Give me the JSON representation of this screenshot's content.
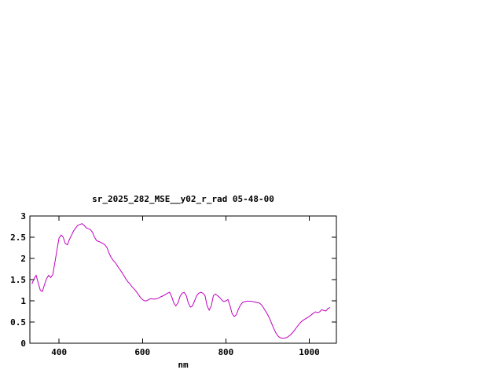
{
  "window": {
    "background": "#ffffff"
  },
  "chart_data": {
    "type": "line",
    "title": "sr_2025_282_MSE__y02_r_rad 05-48-00",
    "xlabel": "nm",
    "ylabel": "",
    "xlim": [
      330,
      1065
    ],
    "ylim": [
      0,
      3
    ],
    "xticks": [
      400,
      600,
      800,
      1000
    ],
    "xtick_labels": [
      "400",
      "600",
      "800",
      "1000"
    ],
    "yticks": [
      0,
      0.5,
      1,
      1.5,
      2,
      2.5,
      3
    ],
    "ytick_labels": [
      "0",
      "0.5",
      "1",
      "1.5",
      "2",
      "2.5",
      "3"
    ],
    "grid": false,
    "legend": "none",
    "line_color": "#bf00bf",
    "axis_color": "#000000",
    "series": [
      {
        "name": "sr_2025_282_MSE__y02_r_rad",
        "x": [
          335,
          340,
          345,
          350,
          355,
          360,
          365,
          370,
          375,
          380,
          385,
          390,
          395,
          400,
          405,
          410,
          415,
          420,
          425,
          430,
          435,
          440,
          445,
          450,
          455,
          460,
          465,
          470,
          475,
          480,
          485,
          490,
          495,
          500,
          505,
          510,
          515,
          520,
          525,
          530,
          535,
          540,
          545,
          550,
          555,
          560,
          565,
          570,
          575,
          580,
          585,
          590,
          595,
          600,
          605,
          610,
          615,
          620,
          625,
          630,
          635,
          640,
          645,
          650,
          655,
          660,
          665,
          670,
          675,
          680,
          685,
          690,
          695,
          700,
          705,
          710,
          715,
          720,
          725,
          730,
          735,
          740,
          745,
          750,
          755,
          760,
          765,
          770,
          775,
          780,
          785,
          790,
          795,
          800,
          805,
          810,
          815,
          820,
          825,
          830,
          835,
          840,
          845,
          850,
          855,
          860,
          865,
          870,
          875,
          880,
          885,
          890,
          895,
          900,
          905,
          910,
          915,
          920,
          925,
          930,
          935,
          940,
          945,
          950,
          955,
          960,
          965,
          970,
          975,
          980,
          985,
          990,
          995,
          1000,
          1005,
          1010,
          1015,
          1020,
          1025,
          1030,
          1035,
          1040,
          1045,
          1050
        ],
        "y": [
          1.4,
          1.52,
          1.6,
          1.42,
          1.25,
          1.22,
          1.38,
          1.52,
          1.6,
          1.55,
          1.62,
          1.9,
          2.2,
          2.48,
          2.55,
          2.5,
          2.35,
          2.32,
          2.45,
          2.55,
          2.65,
          2.72,
          2.78,
          2.8,
          2.82,
          2.78,
          2.72,
          2.7,
          2.68,
          2.62,
          2.5,
          2.42,
          2.4,
          2.38,
          2.35,
          2.32,
          2.25,
          2.12,
          2.02,
          1.95,
          1.9,
          1.82,
          1.75,
          1.68,
          1.6,
          1.52,
          1.45,
          1.4,
          1.33,
          1.28,
          1.22,
          1.15,
          1.08,
          1.03,
          1.0,
          1.0,
          1.03,
          1.05,
          1.04,
          1.04,
          1.05,
          1.07,
          1.1,
          1.12,
          1.15,
          1.18,
          1.2,
          1.1,
          0.95,
          0.88,
          0.95,
          1.1,
          1.18,
          1.2,
          1.12,
          0.95,
          0.85,
          0.88,
          1.0,
          1.12,
          1.18,
          1.2,
          1.18,
          1.12,
          0.88,
          0.78,
          0.88,
          1.12,
          1.16,
          1.12,
          1.08,
          1.02,
          0.98,
          1.0,
          1.03,
          0.88,
          0.7,
          0.63,
          0.67,
          0.8,
          0.9,
          0.96,
          0.98,
          0.99,
          0.99,
          0.99,
          0.98,
          0.97,
          0.96,
          0.95,
          0.91,
          0.84,
          0.76,
          0.68,
          0.58,
          0.46,
          0.34,
          0.24,
          0.17,
          0.13,
          0.12,
          0.12,
          0.13,
          0.16,
          0.2,
          0.25,
          0.31,
          0.38,
          0.44,
          0.5,
          0.54,
          0.57,
          0.6,
          0.63,
          0.67,
          0.71,
          0.74,
          0.72,
          0.74,
          0.79,
          0.77,
          0.76,
          0.82,
          0.84
        ]
      }
    ]
  }
}
